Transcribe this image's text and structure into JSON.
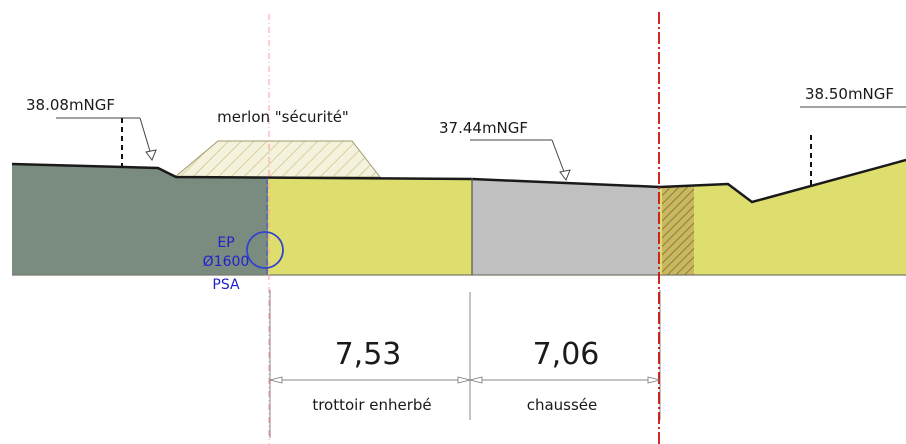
{
  "elevations": {
    "left": "38.08mNGF",
    "middle": "37.44mNGF",
    "right": "38.50mNGF"
  },
  "merlon_label": "merlon \"sécurité\"",
  "pipe": {
    "line1": "EP",
    "line2": "Ø1600",
    "line3": "PSA"
  },
  "dimensions": {
    "trottoir_value": "7,53",
    "trottoir_label": "trottoir enherbé",
    "chaussee_value": "7,06",
    "chaussee_label": "chaussée"
  },
  "colors": {
    "embankment": "#7a8b7f",
    "trottoir": "#dede6e",
    "chaussee": "#c0c0c0",
    "right_zone": "#dede6e",
    "merlon_fill": "#f4f2dc",
    "merlon_hatch": "#cfc98a",
    "pipe": "#3344cc",
    "axis": "#cc1111"
  }
}
